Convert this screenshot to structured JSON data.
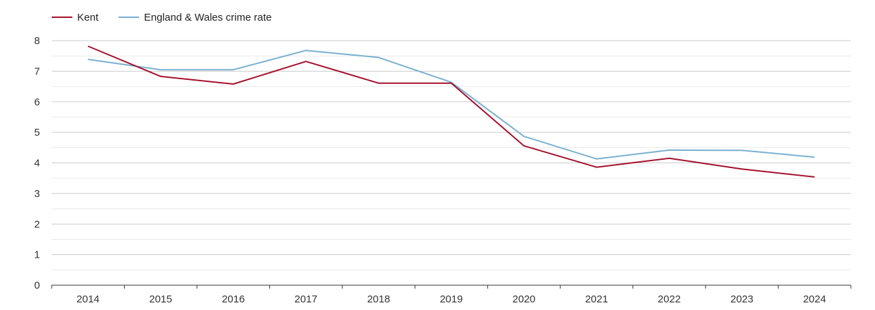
{
  "chart_data": {
    "type": "line",
    "title": "",
    "xlabel": "",
    "ylabel": "",
    "x": [
      "2014",
      "2015",
      "2016",
      "2017",
      "2018",
      "2019",
      "2020",
      "2021",
      "2022",
      "2023",
      "2024"
    ],
    "ylim": [
      0,
      8
    ],
    "yticks": [
      "0",
      "1",
      "2",
      "3",
      "4",
      "5",
      "6",
      "7",
      "8"
    ],
    "grid": true,
    "legend_position": "top-left",
    "series": [
      {
        "name": "Kent",
        "color": "#a50f2d",
        "values": [
          7.82,
          6.83,
          6.58,
          7.32,
          6.61,
          6.61,
          4.56,
          3.86,
          4.15,
          3.8,
          3.54
        ]
      },
      {
        "name": "England & Wales crime rate",
        "color": "#79b0d0",
        "values": [
          7.39,
          7.05,
          7.05,
          7.68,
          7.45,
          6.64,
          4.87,
          4.13,
          4.42,
          4.41,
          4.19
        ]
      }
    ]
  }
}
